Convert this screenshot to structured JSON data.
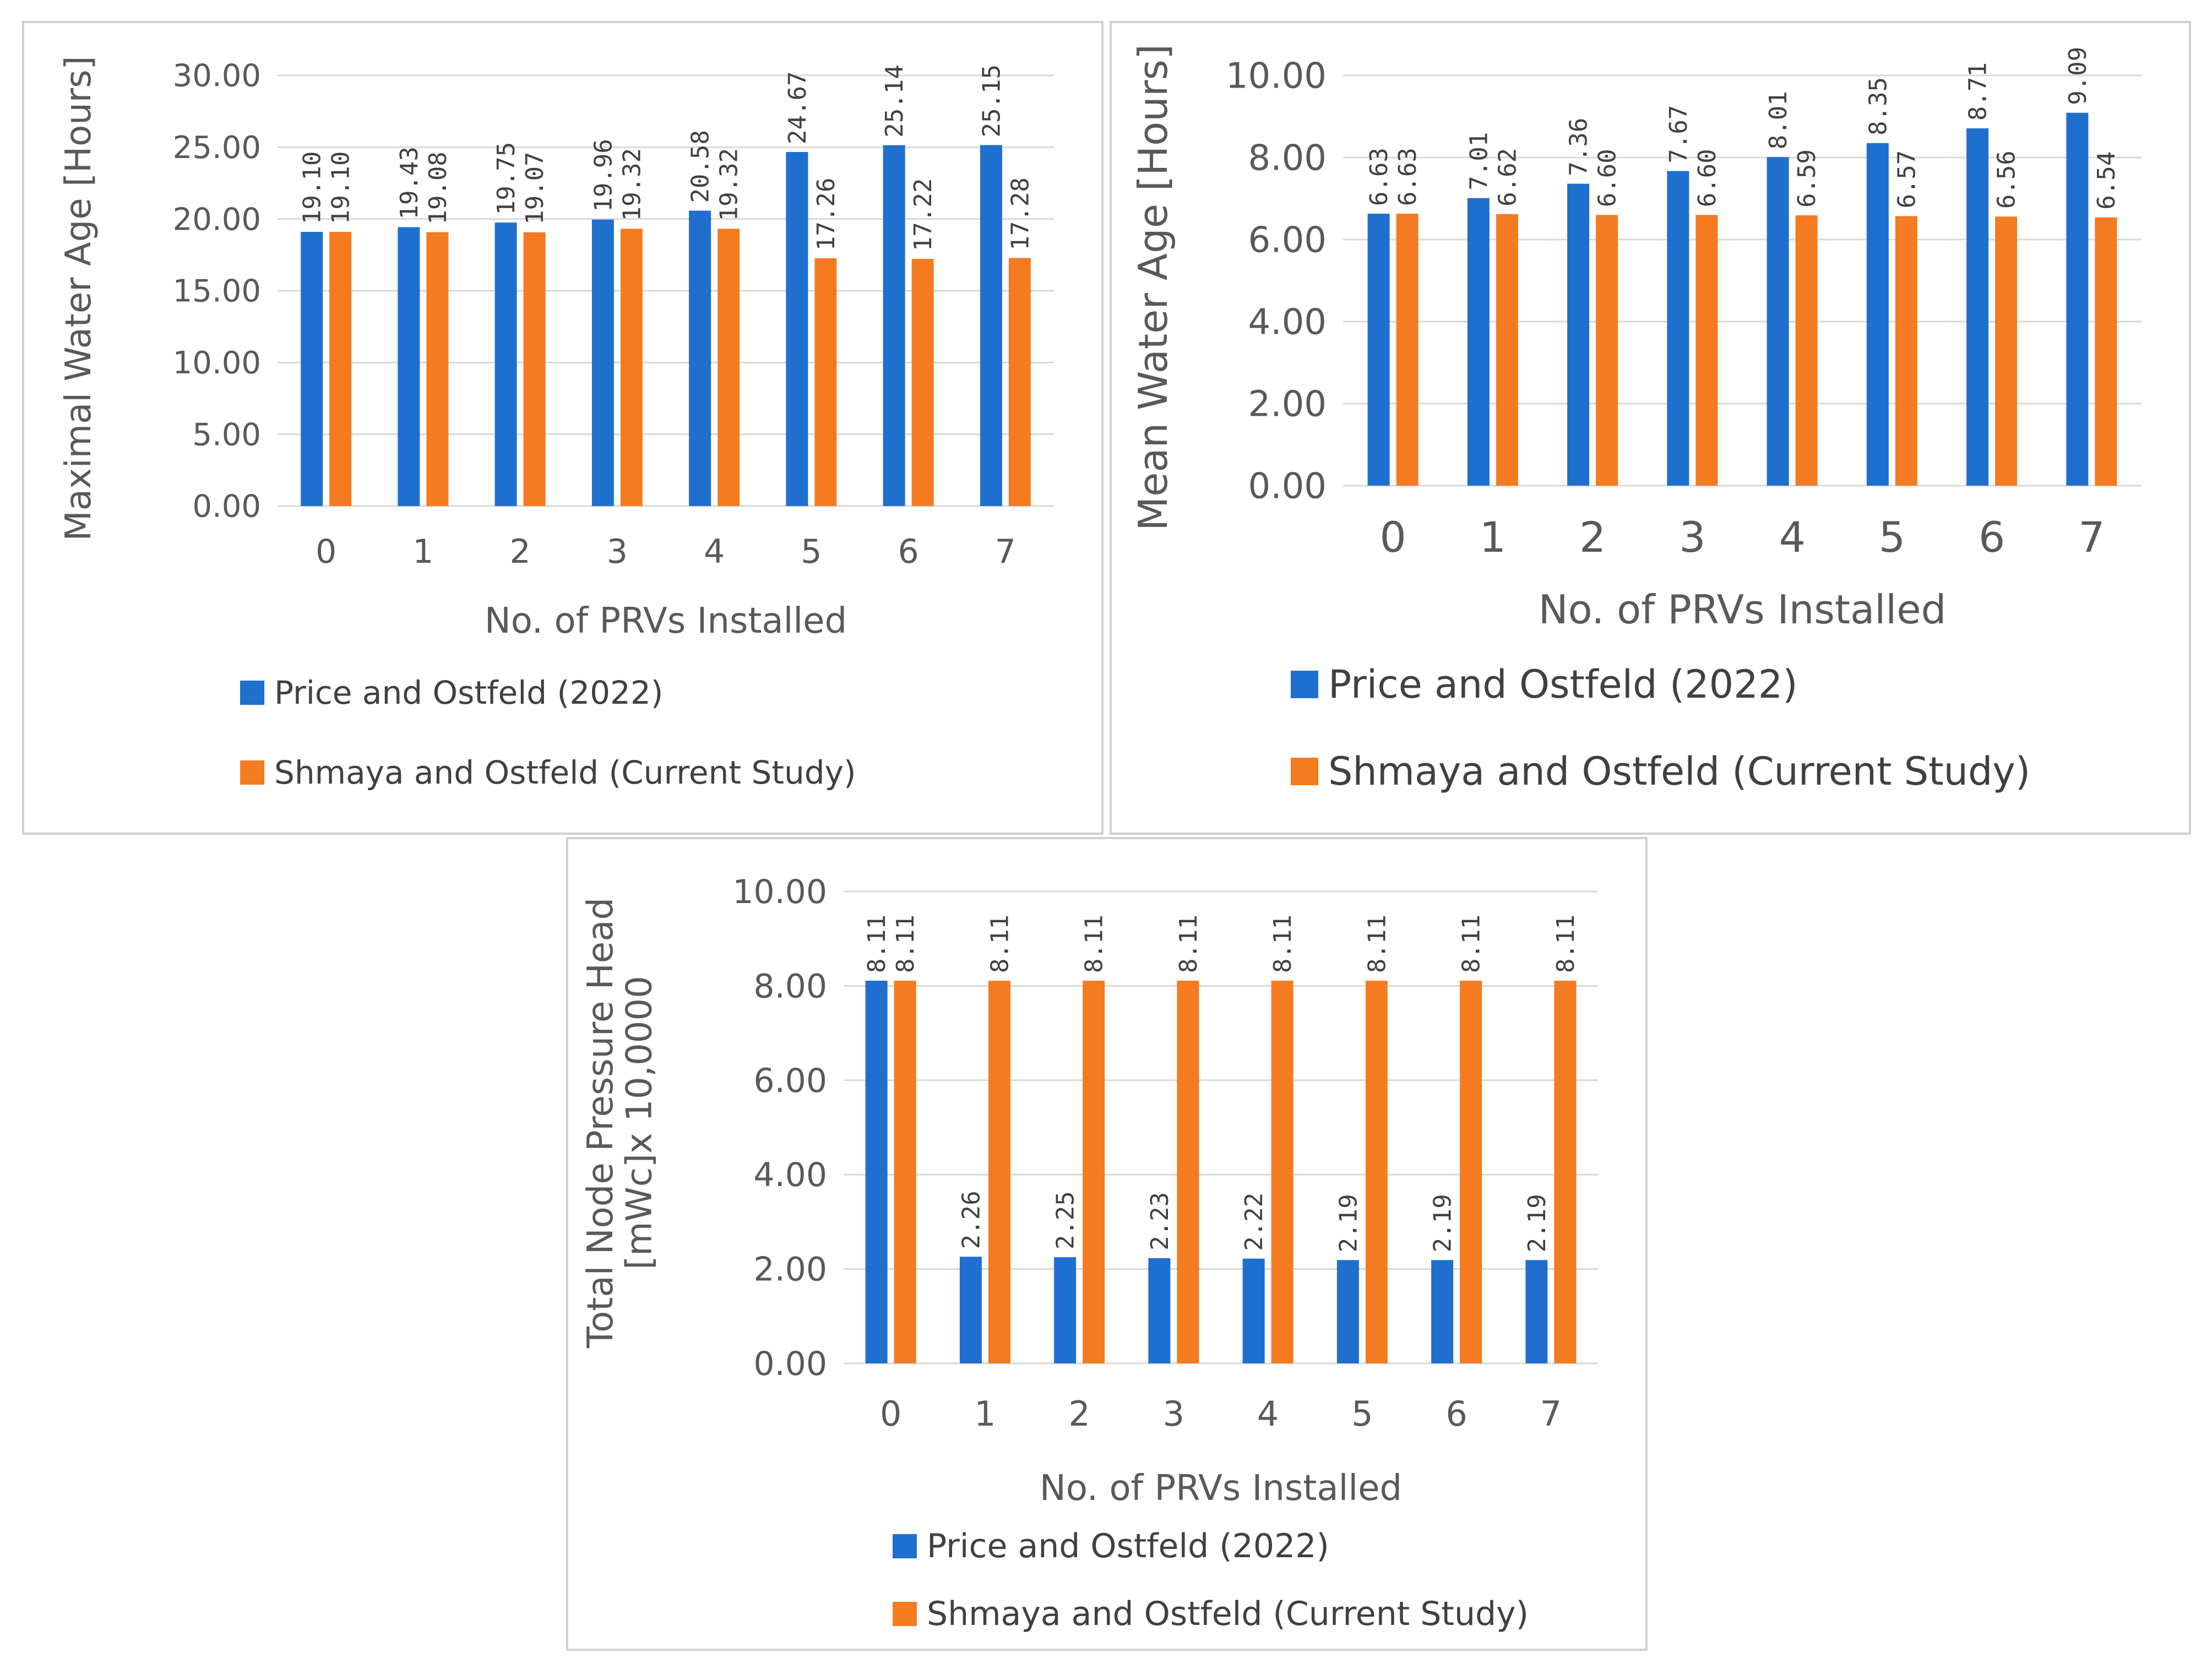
{
  "colors": {
    "series1": "#1F6FCE",
    "series2": "#F47B20",
    "grid": "#d9d9d9",
    "text": "#595959"
  },
  "chart_data": [
    {
      "type": "bar",
      "categories": [
        "0",
        "1",
        "2",
        "3",
        "4",
        "5",
        "6",
        "7"
      ],
      "series": [
        {
          "name": "Price and Ostfeld (2022)",
          "values": [
            19.1,
            19.43,
            19.75,
            19.96,
            20.58,
            24.67,
            25.14,
            25.15
          ],
          "labels": [
            "19.10",
            "19.43",
            "19.75",
            "19.96",
            "20.58",
            "24.67",
            "25.14",
            "25.15"
          ]
        },
        {
          "name": "Shmaya and Ostfeld (Current Study)",
          "values": [
            19.1,
            19.08,
            19.07,
            19.32,
            19.32,
            17.26,
            17.22,
            17.28
          ],
          "labels": [
            "19.10",
            "19.08",
            "19.07",
            "19.32",
            "19.32",
            "17.26",
            "17.22",
            "17.28"
          ]
        }
      ],
      "xlabel": "No. of PRVs Installed",
      "ylabel": "Maximal Water Age [Hours]",
      "ylim": [
        0,
        30
      ],
      "yticks": [
        "0.00",
        "5.00",
        "10.00",
        "15.00",
        "20.00",
        "25.00",
        "30.00"
      ],
      "grid": true,
      "legend": "bottom"
    },
    {
      "type": "bar",
      "categories": [
        "0",
        "1",
        "2",
        "3",
        "4",
        "5",
        "6",
        "7"
      ],
      "series": [
        {
          "name": "Price and Ostfeld (2022)",
          "values": [
            6.63,
            7.01,
            7.36,
            7.67,
            8.01,
            8.35,
            8.71,
            9.09
          ],
          "labels": [
            "6.63",
            "7.01",
            "7.36",
            "7.67",
            "8.01",
            "8.35",
            "8.71",
            "9.09"
          ]
        },
        {
          "name": "Shmaya and Ostfeld (Current Study)",
          "values": [
            6.63,
            6.62,
            6.6,
            6.6,
            6.59,
            6.57,
            6.56,
            6.54
          ],
          "labels": [
            "6.63",
            "6.62",
            "6.60",
            "6.60",
            "6.59",
            "6.57",
            "6.56",
            "6.54"
          ]
        }
      ],
      "xlabel": "No. of PRVs Installed",
      "ylabel": "Mean Water Age [Hours]",
      "ylim": [
        0,
        10
      ],
      "yticks": [
        "0.00",
        "2.00",
        "4.00",
        "6.00",
        "8.00",
        "10.00"
      ],
      "grid": true,
      "legend": "bottom"
    },
    {
      "type": "bar",
      "categories": [
        "0",
        "1",
        "2",
        "3",
        "4",
        "5",
        "6",
        "7"
      ],
      "series": [
        {
          "name": "Price and Ostfeld (2022)",
          "values": [
            8.11,
            2.26,
            2.25,
            2.23,
            2.22,
            2.19,
            2.19,
            2.19
          ],
          "labels": [
            "8.11",
            "2.26",
            "2.25",
            "2.23",
            "2.22",
            "2.19",
            "2.19",
            "2.19"
          ]
        },
        {
          "name": "Shmaya and Ostfeld (Current Study)",
          "values": [
            8.11,
            8.11,
            8.11,
            8.11,
            8.11,
            8.11,
            8.11,
            8.11
          ],
          "labels": [
            "8.11",
            "8.11",
            "8.11",
            "8.11",
            "8.11",
            "8.11",
            "8.11",
            "8.11"
          ]
        }
      ],
      "xlabel": "No. of PRVs Installed",
      "ylabel": [
        "Total Node Pressure Head",
        "[mWc]x 10,0000"
      ],
      "ylim": [
        0,
        10
      ],
      "yticks": [
        "0.00",
        "2.00",
        "4.00",
        "6.00",
        "8.00",
        "10.00"
      ],
      "grid": true,
      "legend": "bottom"
    }
  ]
}
